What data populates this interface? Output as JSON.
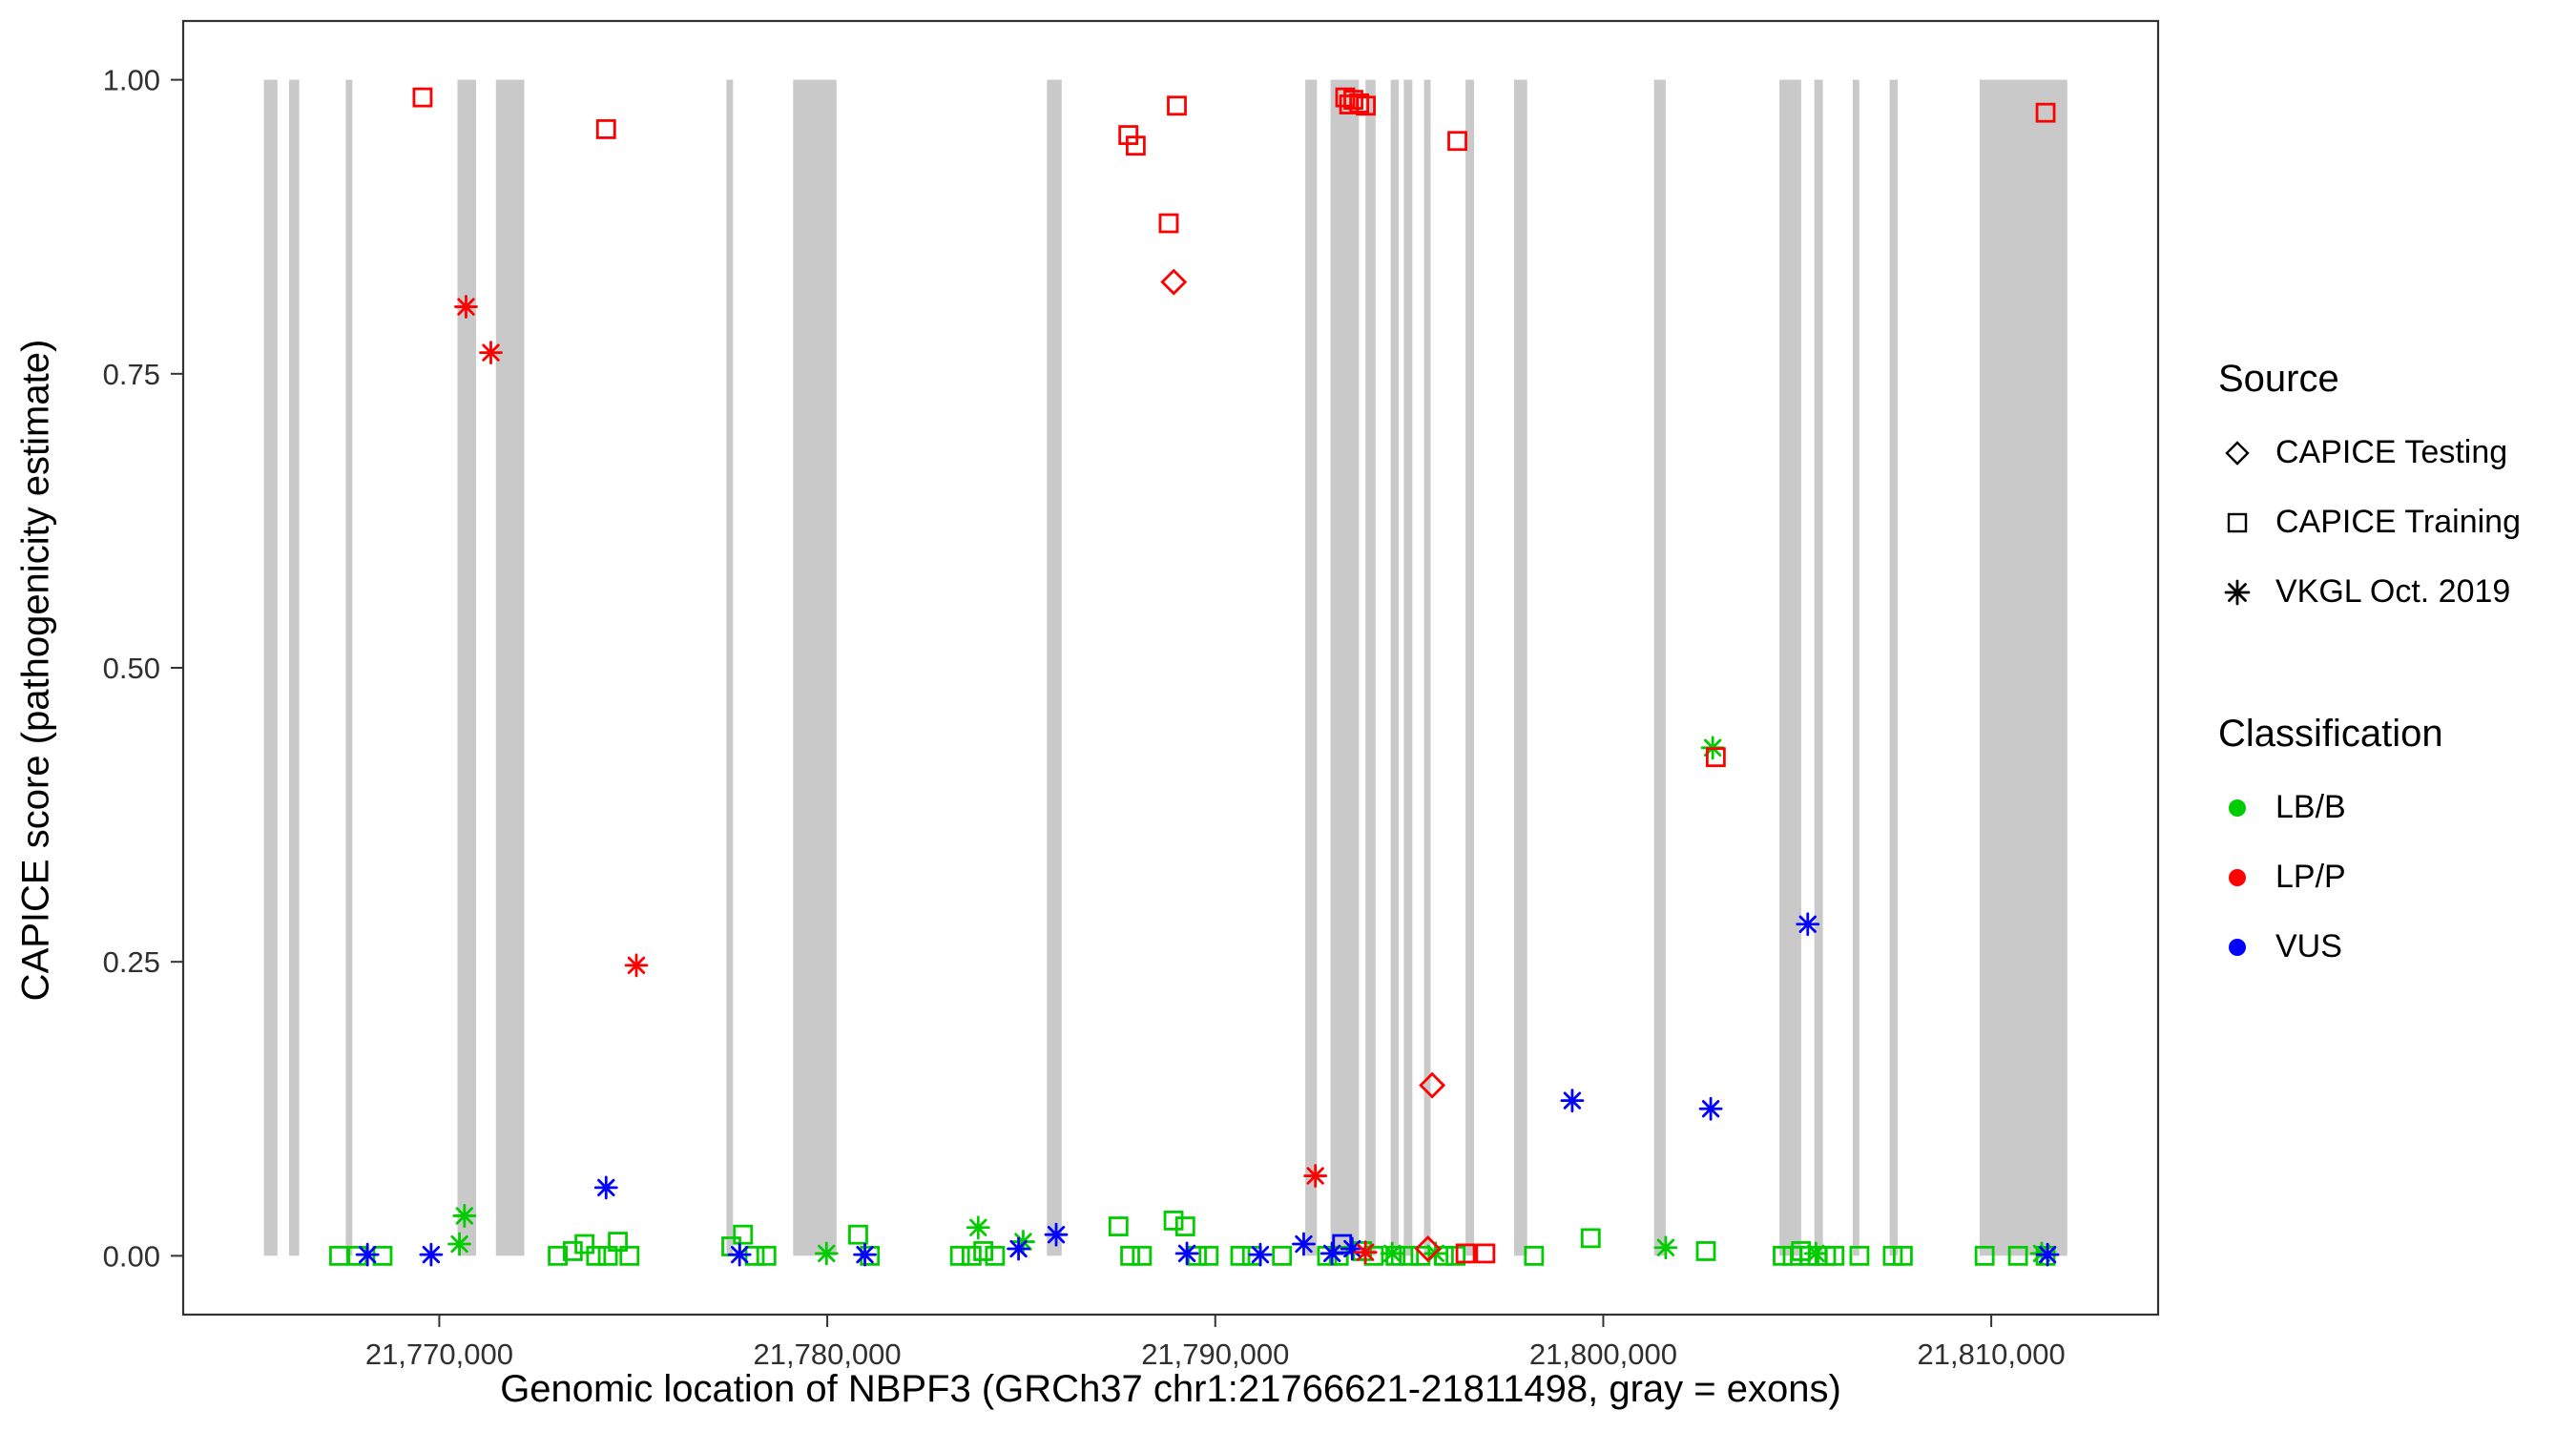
{
  "chart_data": {
    "type": "scatter",
    "title": "",
    "xlabel": "Genomic location of NBPF3 (GRCh37 chr1:21766621-21811498, gray = exons)",
    "ylabel": "CAPICE score (pathogenicity estimate)",
    "xlim": [
      21763400,
      21814300
    ],
    "ylim": [
      -0.05,
      1.05
    ],
    "grid": "off",
    "legend_position": "right",
    "x_ticks": [
      {
        "value": 21770000,
        "label": "21,770,000"
      },
      {
        "value": 21780000,
        "label": "21,780,000"
      },
      {
        "value": 21790000,
        "label": "21,790,000"
      },
      {
        "value": 21800000,
        "label": "21,800,000"
      },
      {
        "value": 21810000,
        "label": "21,810,000"
      }
    ],
    "y_ticks": [
      {
        "value": 0.0,
        "label": "0.00"
      },
      {
        "value": 0.25,
        "label": "0.25"
      },
      {
        "value": 0.5,
        "label": "0.50"
      },
      {
        "value": 0.75,
        "label": "0.75"
      },
      {
        "value": 1.0,
        "label": "1.00"
      }
    ],
    "exon_color": "#c9c9c9",
    "exons": [
      [
        21765480,
        21765830
      ],
      [
        21766130,
        21766390
      ],
      [
        21767590,
        21767760
      ],
      [
        21770470,
        21770950
      ],
      [
        21771460,
        21772190
      ],
      [
        21777400,
        21777570
      ],
      [
        21779120,
        21780240
      ],
      [
        21785660,
        21786040
      ],
      [
        21792320,
        21792620
      ],
      [
        21792970,
        21793700
      ],
      [
        21793870,
        21794130
      ],
      [
        21794520,
        21794730
      ],
      [
        21794860,
        21795080
      ],
      [
        21795380,
        21795550
      ],
      [
        21796450,
        21796670
      ],
      [
        21797700,
        21798040
      ],
      [
        21801310,
        21801610
      ],
      [
        21804540,
        21805100
      ],
      [
        21805440,
        21805660
      ],
      [
        21806430,
        21806600
      ],
      [
        21807380,
        21807590
      ],
      [
        21809700,
        21811960
      ]
    ],
    "classification_colors": {
      "LB/B": "#00cc00",
      "LP/P": "#ff0000",
      "VUS": "#0000ff"
    },
    "source_shapes": {
      "Testing": "diamond",
      "Training": "square",
      "VKGL": "asterisk"
    },
    "point_format": [
      "x_genomic_position",
      "capice_score",
      "classification",
      "source"
    ],
    "points": [
      [
        21769570,
        0.985,
        "LP/P",
        "Training"
      ],
      [
        21774300,
        0.958,
        "LP/P",
        "Training"
      ],
      [
        21787760,
        0.953,
        "LP/P",
        "Training"
      ],
      [
        21787950,
        0.944,
        "LP/P",
        "Training"
      ],
      [
        21789010,
        0.978,
        "LP/P",
        "Training"
      ],
      [
        21788800,
        0.878,
        "LP/P",
        "Training"
      ],
      [
        21793350,
        0.985,
        "LP/P",
        "Training"
      ],
      [
        21793450,
        0.979,
        "LP/P",
        "Training"
      ],
      [
        21793560,
        0.983,
        "LP/P",
        "Training"
      ],
      [
        21793710,
        0.98,
        "LP/P",
        "Training"
      ],
      [
        21793880,
        0.978,
        "LP/P",
        "Training"
      ],
      [
        21796240,
        0.948,
        "LP/P",
        "Training"
      ],
      [
        21802900,
        0.424,
        "LP/P",
        "Training"
      ],
      [
        21811400,
        0.972,
        "LP/P",
        "Training"
      ],
      [
        21796450,
        0.002,
        "LP/P",
        "Training"
      ],
      [
        21796960,
        0.002,
        "LP/P",
        "Training"
      ],
      [
        21788930,
        0.828,
        "LP/P",
        "Testing"
      ],
      [
        21795590,
        0.145,
        "LP/P",
        "Testing"
      ],
      [
        21795480,
        0.006,
        "LP/P",
        "Testing"
      ],
      [
        21770690,
        0.807,
        "LP/P",
        "VKGL"
      ],
      [
        21771330,
        0.768,
        "LP/P",
        "VKGL"
      ],
      [
        21775080,
        0.247,
        "LP/P",
        "VKGL"
      ],
      [
        21792580,
        0.068,
        "LP/P",
        "VKGL"
      ],
      [
        21793870,
        0.003,
        "LP/P",
        "VKGL"
      ],
      [
        21774300,
        0.058,
        "VUS",
        "VKGL"
      ],
      [
        21799200,
        0.132,
        "VUS",
        "VKGL"
      ],
      [
        21802770,
        0.125,
        "VUS",
        "VKGL"
      ],
      [
        21805270,
        0.282,
        "VUS",
        "VKGL"
      ],
      [
        21785900,
        0.018,
        "VUS",
        "VKGL"
      ],
      [
        21784930,
        0.006,
        "VUS",
        "VKGL"
      ],
      [
        21768150,
        0.001,
        "VUS",
        "VKGL"
      ],
      [
        21769790,
        0.001,
        "VUS",
        "VKGL"
      ],
      [
        21777740,
        0.001,
        "VUS",
        "VKGL"
      ],
      [
        21780970,
        0.001,
        "VUS",
        "VKGL"
      ],
      [
        21789270,
        0.002,
        "VUS",
        "VKGL"
      ],
      [
        21791160,
        0.001,
        "VUS",
        "VKGL"
      ],
      [
        21792280,
        0.01,
        "VUS",
        "VKGL"
      ],
      [
        21793010,
        0.002,
        "VUS",
        "VKGL"
      ],
      [
        21793530,
        0.006,
        "VUS",
        "VKGL"
      ],
      [
        21811450,
        0.001,
        "VUS",
        "VKGL"
      ],
      [
        21793270,
        0.01,
        "VUS",
        "Training"
      ],
      [
        21770650,
        0.034,
        "LB/B",
        "VKGL"
      ],
      [
        21770520,
        0.01,
        "LB/B",
        "VKGL"
      ],
      [
        21783890,
        0.024,
        "LB/B",
        "VKGL"
      ],
      [
        21802820,
        0.432,
        "LB/B",
        "VKGL"
      ],
      [
        21779980,
        0.002,
        "LB/B",
        "VKGL"
      ],
      [
        21785050,
        0.012,
        "LB/B",
        "VKGL"
      ],
      [
        21794560,
        0.002,
        "LB/B",
        "VKGL"
      ],
      [
        21795680,
        0.002,
        "LB/B",
        "VKGL"
      ],
      [
        21801610,
        0.007,
        "LB/B",
        "VKGL"
      ],
      [
        21805480,
        0.002,
        "LB/B",
        "VKGL"
      ],
      [
        21811300,
        0.002,
        "LB/B",
        "VKGL"
      ],
      [
        21767419,
        0.0,
        "LB/B",
        "Training"
      ],
      [
        21767892,
        0.0,
        "LB/B",
        "Training"
      ],
      [
        21768538,
        0.0,
        "LB/B",
        "Training"
      ],
      [
        21773054,
        0.0,
        "LB/B",
        "Training"
      ],
      [
        21773441,
        0.004,
        "LB/B",
        "Training"
      ],
      [
        21773742,
        0.01,
        "LB/B",
        "Training"
      ],
      [
        21774043,
        0.0,
        "LB/B",
        "Training"
      ],
      [
        21774344,
        0.0,
        "LB/B",
        "Training"
      ],
      [
        21774602,
        0.012,
        "LB/B",
        "Training"
      ],
      [
        21774903,
        0.0,
        "LB/B",
        "Training"
      ],
      [
        21777527,
        0.008,
        "LB/B",
        "Training"
      ],
      [
        21777828,
        0.018,
        "LB/B",
        "Training"
      ],
      [
        21778129,
        0.0,
        "LB/B",
        "Training"
      ],
      [
        21778430,
        0.0,
        "LB/B",
        "Training"
      ],
      [
        21780796,
        0.018,
        "LB/B",
        "Training"
      ],
      [
        21781097,
        0.0,
        "LB/B",
        "Training"
      ],
      [
        21783419,
        0.0,
        "LB/B",
        "Training"
      ],
      [
        21783720,
        0.0,
        "LB/B",
        "Training"
      ],
      [
        21784021,
        0.004,
        "LB/B",
        "Training"
      ],
      [
        21784322,
        0.0,
        "LB/B",
        "Training"
      ],
      [
        21787505,
        0.025,
        "LB/B",
        "Training"
      ],
      [
        21787806,
        0.0,
        "LB/B",
        "Training"
      ],
      [
        21788108,
        0.0,
        "LB/B",
        "Training"
      ],
      [
        21788925,
        0.03,
        "LB/B",
        "Training"
      ],
      [
        21789226,
        0.025,
        "LB/B",
        "Training"
      ],
      [
        21789527,
        0.0,
        "LB/B",
        "Training"
      ],
      [
        21789828,
        0.0,
        "LB/B",
        "Training"
      ],
      [
        21790645,
        0.0,
        "LB/B",
        "Training"
      ],
      [
        21790946,
        0.0,
        "LB/B",
        "Training"
      ],
      [
        21791720,
        0.0,
        "LB/B",
        "Training"
      ],
      [
        21792882,
        0.0,
        "LB/B",
        "Training"
      ],
      [
        21793183,
        0.0,
        "LB/B",
        "Training"
      ],
      [
        21793785,
        0.004,
        "LB/B",
        "Training"
      ],
      [
        21794086,
        0.0,
        "LB/B",
        "Training"
      ],
      [
        21794645,
        0.0,
        "LB/B",
        "Training"
      ],
      [
        21794989,
        0.0,
        "LB/B",
        "Training"
      ],
      [
        21795290,
        0.0,
        "LB/B",
        "Training"
      ],
      [
        21795892,
        0.0,
        "LB/B",
        "Training"
      ],
      [
        21796194,
        0.0,
        "LB/B",
        "Training"
      ],
      [
        21798215,
        0.0,
        "LB/B",
        "Training"
      ],
      [
        21799677,
        0.015,
        "LB/B",
        "Training"
      ],
      [
        21802645,
        0.004,
        "LB/B",
        "Training"
      ],
      [
        21804624,
        0.0,
        "LB/B",
        "Training"
      ],
      [
        21804882,
        0.0,
        "LB/B",
        "Training"
      ],
      [
        21805097,
        0.004,
        "LB/B",
        "Training"
      ],
      [
        21805312,
        0.0,
        "LB/B",
        "Training"
      ],
      [
        21805527,
        0.0,
        "LB/B",
        "Training"
      ],
      [
        21805742,
        0.0,
        "LB/B",
        "Training"
      ],
      [
        21805957,
        0.0,
        "LB/B",
        "Training"
      ],
      [
        21806602,
        0.0,
        "LB/B",
        "Training"
      ],
      [
        21807462,
        0.0,
        "LB/B",
        "Training"
      ],
      [
        21807720,
        0.0,
        "LB/B",
        "Training"
      ],
      [
        21809828,
        0.0,
        "LB/B",
        "Training"
      ],
      [
        21810688,
        0.0,
        "LB/B",
        "Training"
      ],
      [
        21811400,
        0.0,
        "LB/B",
        "Training"
      ]
    ]
  },
  "legend": {
    "source": {
      "title": "Source",
      "items": [
        {
          "label": "CAPICE Testing",
          "shape": "diamond"
        },
        {
          "label": "CAPICE Training",
          "shape": "square"
        },
        {
          "label": "VKGL Oct. 2019",
          "shape": "asterisk"
        }
      ]
    },
    "classification": {
      "title": "Classification",
      "items": [
        {
          "label": "LB/B",
          "color": "#00cc00"
        },
        {
          "label": "LP/P",
          "color": "#ff0000"
        },
        {
          "label": "VUS",
          "color": "#0000ff"
        }
      ]
    }
  }
}
